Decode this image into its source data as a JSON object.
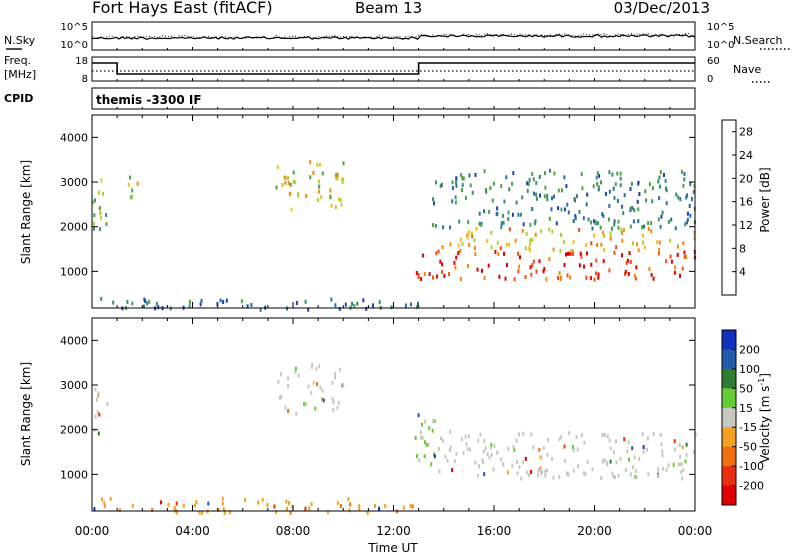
{
  "header": {
    "station": "Fort Hays East (fitACF)",
    "beam": "Beam 13",
    "date": "03/Dec/2013"
  },
  "noise_panel": {
    "left_label": "N.Sky",
    "right_label": "N.Search",
    "left_ticks": [
      "10^5",
      "10^0"
    ],
    "right_ticks": [
      "10^5",
      "10^0"
    ]
  },
  "freq_panel": {
    "left_label_line1": "Freq.",
    "left_label_line2": "[MHz]",
    "left_ticks": [
      "18",
      "8"
    ],
    "right_label": "Nave",
    "right_ticks": [
      "60",
      "0"
    ]
  },
  "cpid": {
    "label": "CPID",
    "value": "themis -3300 IF"
  },
  "colors": {
    "power": [
      "#0000ff",
      "#1f3fb8",
      "#2a6fa0",
      "#3a8f6a",
      "#4ea04a",
      "#b0d030",
      "#f0c020",
      "#f08a10",
      "#f05010",
      "#e00000"
    ],
    "velocity": [
      "#1030c0",
      "#205aa8",
      "#2e7d32",
      "#66cc33",
      "#c8c8c0",
      "#f5a020",
      "#f07010",
      "#e83010",
      "#e00000"
    ],
    "ground_scatter": "#c8c8c0"
  },
  "chart_data": [
    {
      "type": "heatmap",
      "name": "Power",
      "x_unit": "Time UT",
      "xlim": [
        "00:00",
        "24:00"
      ],
      "ylim": [
        180,
        4500
      ],
      "ylabel": "Slant Range [km]",
      "y_ticks": [
        1000,
        2000,
        3000,
        4000
      ],
      "colorbar": {
        "label": "Power [dB]",
        "ticks": [
          4,
          8,
          12,
          16,
          20,
          24,
          28
        ],
        "range": [
          0,
          30
        ]
      },
      "regions": [
        {
          "t": [
            0.0,
            0.6
          ],
          "range_km": [
            1800,
            3200
          ],
          "value": 14
        },
        {
          "t": [
            1.2,
            1.8
          ],
          "range_km": [
            2700,
            3300
          ],
          "value": 18
        },
        {
          "t": [
            7.3,
            10.0
          ],
          "range_km": [
            2400,
            3500
          ],
          "value": 18
        },
        {
          "t": [
            12.8,
            24.0
          ],
          "range_km": [
            850,
            1500
          ],
          "value": 27
        },
        {
          "t": [
            13.5,
            24.0
          ],
          "range_km": [
            1500,
            2000
          ],
          "value": 20
        },
        {
          "t": [
            13.5,
            24.0
          ],
          "range_km": [
            2000,
            3300
          ],
          "value": 10
        },
        {
          "t": [
            0.0,
            13.0
          ],
          "range_km": [
            180,
            450
          ],
          "value": 8
        }
      ]
    },
    {
      "type": "heatmap",
      "name": "Velocity",
      "x_unit": "Time UT",
      "xlim": [
        "00:00",
        "24:00"
      ],
      "ylim": [
        180,
        4500
      ],
      "ylabel": "Slant Range [km]",
      "y_ticks": [
        1000,
        2000,
        3000,
        4000
      ],
      "colorbar": {
        "label": "Velocity [m s^-1]",
        "ticks": [
          "200",
          "100",
          "50",
          "15",
          "-15",
          "-50",
          "-100",
          "-200"
        ],
        "range": [
          -250,
          250
        ]
      },
      "regions": [
        {
          "t": [
            0.0,
            0.6
          ],
          "range_km": [
            1900,
            3000
          ],
          "value": 0
        },
        {
          "t": [
            7.3,
            10.0
          ],
          "range_km": [
            2400,
            3500
          ],
          "value": 0
        },
        {
          "t": [
            12.8,
            13.6
          ],
          "range_km": [
            1100,
            2500
          ],
          "value": 40
        },
        {
          "t": [
            13.5,
            24.0
          ],
          "range_km": [
            950,
            2000
          ],
          "value": 0
        },
        {
          "t": [
            0.0,
            13.0
          ],
          "range_km": [
            180,
            500
          ],
          "value": -60
        }
      ]
    }
  ],
  "x_axis": {
    "ticks": [
      "00:00",
      "04:00",
      "08:00",
      "12:00",
      "16:00",
      "20:00",
      "00:00"
    ],
    "label": "Time UT"
  }
}
